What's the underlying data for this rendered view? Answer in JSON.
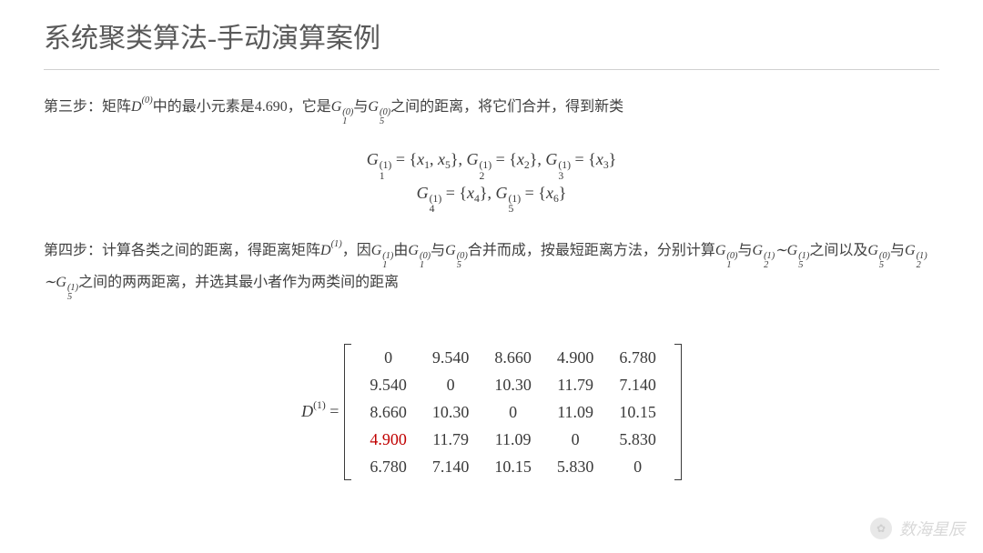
{
  "title": "系统聚类算法-手动演算案例",
  "step3": {
    "prefix": "第三步：矩阵",
    "mat_symbol": "D",
    "mat_sup": "(0)",
    "mid1": "中的最小元素是4.690，它是",
    "g1": {
      "base": "G",
      "sub": "1",
      "sup": "(0)"
    },
    "mid2": "与",
    "g5": {
      "base": "G",
      "sub": "5",
      "sup": "(0)"
    },
    "suffix": "之间的距离，将它们合并，得到新类"
  },
  "equations": {
    "line1": "G₁⁽¹⁾ = {x₁, x₅}, G₂⁽¹⁾ = {x₂}, G₃⁽¹⁾ = {x₃}",
    "line2": "G₄⁽¹⁾ = {x₄}, G₅⁽¹⁾ = {x₆}",
    "g": "G",
    "x": "x",
    "G11": {
      "sub": "1",
      "sup": "(1)"
    },
    "set11": "{x₁, x₅}",
    "G21": {
      "sub": "2",
      "sup": "(1)"
    },
    "set21": "{x₂}",
    "G31": {
      "sub": "3",
      "sup": "(1)"
    },
    "set31": "{x₃}",
    "G41": {
      "sub": "4",
      "sup": "(1)"
    },
    "set41": "{x₄}",
    "G51": {
      "sub": "5",
      "sup": "(1)"
    },
    "set51": "{x₆}"
  },
  "step4": {
    "prefix": "第四步：计算各类之间的距离，得距离矩阵",
    "D1": {
      "base": "D",
      "sup": "(1)"
    },
    "t1": "，因",
    "G11": {
      "base": "G",
      "sub": "1",
      "sup": "(1)"
    },
    "t2": "由",
    "G10": {
      "base": "G",
      "sub": "1",
      "sup": "(0)"
    },
    "t3": "与",
    "G50": {
      "base": "G",
      "sub": "5",
      "sup": "(0)"
    },
    "t4": "合并而成，按最短距离方法，分别计算",
    "G10b": {
      "base": "G",
      "sub": "1",
      "sup": "(0)"
    },
    "t5": "与",
    "G21": {
      "base": "G",
      "sub": "2",
      "sup": "(1)"
    },
    "tilde": "∼",
    "G51": {
      "base": "G",
      "sub": "5",
      "sup": "(1)"
    },
    "t6": "之间以及",
    "G50b": {
      "base": "G",
      "sub": "5",
      "sup": "(0)"
    },
    "t7": "与",
    "G21b": {
      "base": "G",
      "sub": "2",
      "sup": "(1)"
    },
    "G51b": {
      "base": "G",
      "sub": "5",
      "sup": "(1)"
    },
    "t8": "之间的两两距离，并选其最小者作为两类间的距离"
  },
  "matrix": {
    "label_base": "D",
    "label_sup": "(1)",
    "equals": " = ",
    "rows": [
      [
        "0",
        "9.540",
        "8.660",
        "4.900",
        "6.780"
      ],
      [
        "9.540",
        "0",
        "10.30",
        "11.79",
        "7.140"
      ],
      [
        "8.660",
        "10.30",
        "0",
        "11.09",
        "10.15"
      ],
      [
        "4.900",
        "11.79",
        "11.09",
        "0",
        "5.830"
      ],
      [
        "6.780",
        "7.140",
        "10.15",
        "5.830",
        "0"
      ]
    ],
    "highlight": {
      "row": 3,
      "col": 0
    },
    "highlight_color": "#c00000",
    "text_color": "#3a3a3a"
  },
  "watermark": {
    "text": "数海星辰"
  }
}
